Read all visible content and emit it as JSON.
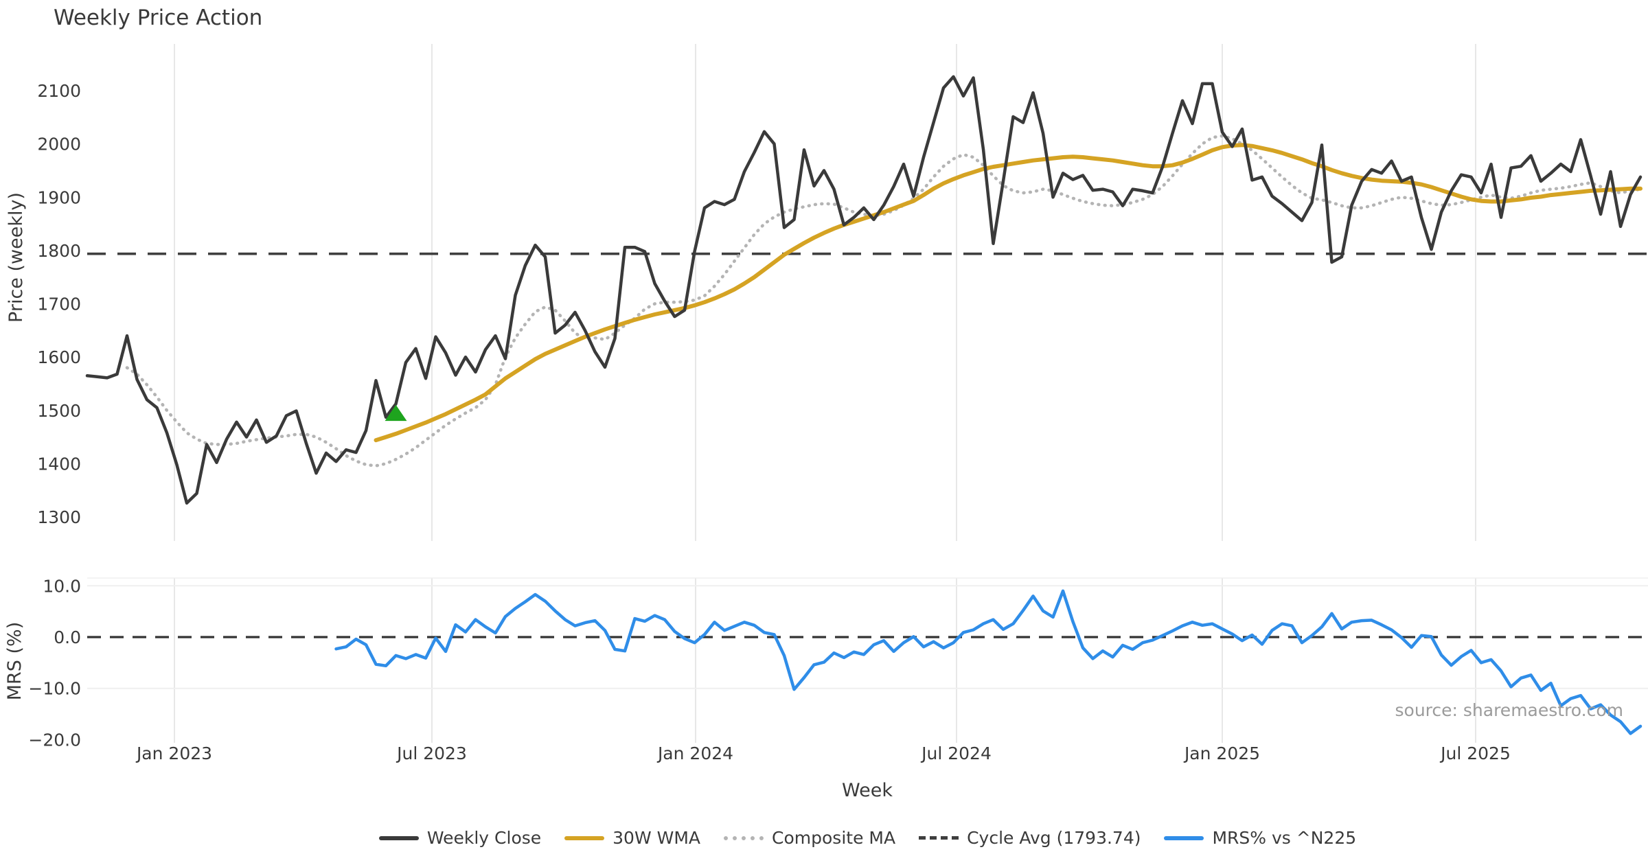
{
  "title": "Weekly Price Action",
  "source_text": "source: sharemaestro.com",
  "colors": {
    "weekly_close": "#3a3a3a",
    "wma30": "#d5a323",
    "composite": "#b4b4b4",
    "cycle_avg": "#3f3f3f",
    "mrs": "#2f8de8",
    "marker_green": "#1ea41e",
    "grid": "#e7e7e7",
    "grid_faint": "#efefef",
    "text": "#3a3a3a",
    "source": "#9b9b9b"
  },
  "legend": {
    "items": [
      {
        "label": "Weekly Close",
        "style": "solid",
        "color": "#3a3a3a"
      },
      {
        "label": "30W WMA",
        "style": "solid",
        "color": "#d5a323"
      },
      {
        "label": "Composite MA",
        "style": "dotted",
        "color": "#b4b4b4"
      },
      {
        "label": "Cycle Avg (1793.74)",
        "style": "dashed",
        "color": "#3f3f3f"
      },
      {
        "label": "MRS% vs ^N225",
        "style": "solid",
        "color": "#2f8de8"
      }
    ]
  },
  "chart_data": [
    {
      "type": "line",
      "panel": "price",
      "title": "Weekly Price Action",
      "ylabel": "Price (weekly)",
      "ylim": [
        1300,
        2100
      ],
      "yticks": [
        2100,
        2000,
        1900,
        1800,
        1700,
        1600,
        1500,
        1400,
        1300
      ],
      "x_unit": "weeks",
      "x_gridlines": [
        {
          "label": "Jan 2023",
          "week": 8.76
        },
        {
          "label": "Jul 2023",
          "week": 34.62
        },
        {
          "label": "Jan 2024",
          "week": 61.1
        },
        {
          "label": "Jul 2024",
          "week": 87.31
        },
        {
          "label": "Jan 2025",
          "week": 114.0
        },
        {
          "label": "Jul 2025",
          "week": 139.45
        }
      ],
      "cycle_avg": 1793.74,
      "marker": {
        "shape": "triangle-up",
        "week": 31,
        "value": 1495,
        "color": "#1ea41e"
      },
      "series": [
        {
          "name": "Weekly Close",
          "color": "#3a3a3a",
          "style": "solid",
          "start_week": 0,
          "values": [
            1565,
            1563,
            1561,
            1568,
            1640,
            1558,
            1520,
            1505,
            1458,
            1398,
            1326,
            1344,
            1436,
            1402,
            1446,
            1478,
            1450,
            1482,
            1440,
            1452,
            1490,
            1499,
            1438,
            1382,
            1420,
            1404,
            1426,
            1421,
            1462,
            1556,
            1487,
            1512,
            1590,
            1616,
            1560,
            1638,
            1608,
            1566,
            1600,
            1572,
            1614,
            1640,
            1597,
            1716,
            1772,
            1810,
            1788,
            1645,
            1660,
            1684,
            1650,
            1610,
            1581,
            1635,
            1806,
            1806,
            1798,
            1738,
            1705,
            1676,
            1688,
            1798,
            1880,
            1892,
            1886,
            1896,
            1948,
            1984,
            2023,
            2000,
            1843,
            1858,
            1989,
            1921,
            1950,
            1915,
            1848,
            1862,
            1880,
            1858,
            1885,
            1920,
            1962,
            1902,
            1975,
            2040,
            2105,
            2126,
            2090,
            2124,
            1990,
            1813,
            1930,
            2051,
            2040,
            2096,
            2020,
            1900,
            1945,
            1933,
            1941,
            1913,
            1915,
            1910,
            1884,
            1915,
            1912,
            1908,
            1957,
            2020,
            2081,
            2038,
            2113,
            2113,
            2022,
            1995,
            2028,
            1932,
            1938,
            1902,
            1888,
            1872,
            1856,
            1890,
            1998,
            1778,
            1788,
            1885,
            1930,
            1952,
            1945,
            1968,
            1930,
            1938,
            1862,
            1802,
            1872,
            1912,
            1942,
            1938,
            1908,
            1962,
            1862,
            1955,
            1958,
            1978,
            1930,
            1945,
            1962,
            1948,
            2008,
            1940,
            1868,
            1948,
            1845,
            1905,
            1938
          ]
        },
        {
          "name": "30W WMA",
          "color": "#d5a323",
          "style": "solid",
          "start_week": 29,
          "values": [
            1444,
            1450,
            1456,
            1463,
            1470,
            1477,
            1485,
            1493,
            1502,
            1511,
            1520,
            1530,
            1545,
            1560,
            1572,
            1584,
            1596,
            1606,
            1614,
            1622,
            1630,
            1638,
            1645,
            1652,
            1658,
            1664,
            1670,
            1675,
            1680,
            1684,
            1688,
            1692,
            1697,
            1703,
            1710,
            1718,
            1727,
            1738,
            1750,
            1764,
            1778,
            1792,
            1803,
            1814,
            1824,
            1833,
            1841,
            1848,
            1854,
            1860,
            1866,
            1872,
            1879,
            1886,
            1893,
            1904,
            1916,
            1926,
            1934,
            1941,
            1947,
            1953,
            1957,
            1960,
            1963,
            1966,
            1969,
            1971,
            1973,
            1975,
            1976,
            1975,
            1973,
            1971,
            1969,
            1966,
            1963,
            1960,
            1958,
            1958,
            1960,
            1965,
            1972,
            1980,
            1988,
            1994,
            1997,
            1998,
            1996,
            1992,
            1988,
            1983,
            1977,
            1971,
            1964,
            1958,
            1951,
            1945,
            1940,
            1936,
            1933,
            1931,
            1930,
            1929,
            1927,
            1924,
            1919,
            1913,
            1907,
            1901,
            1896,
            1893,
            1892,
            1892,
            1894,
            1896,
            1899,
            1901,
            1904,
            1906,
            1908,
            1910,
            1912,
            1913,
            1914,
            1915,
            1916,
            1916
          ]
        },
        {
          "name": "Composite MA",
          "color": "#b4b4b4",
          "style": "dotted",
          "start_week": 4,
          "values": [
            1580,
            1568,
            1548,
            1525,
            1500,
            1478,
            1458,
            1446,
            1438,
            1436,
            1436,
            1438,
            1442,
            1445,
            1448,
            1450,
            1452,
            1455,
            1455,
            1450,
            1440,
            1428,
            1415,
            1405,
            1398,
            1396,
            1400,
            1408,
            1418,
            1430,
            1444,
            1458,
            1472,
            1484,
            1495,
            1505,
            1520,
            1548,
            1600,
            1636,
            1662,
            1685,
            1694,
            1688,
            1668,
            1645,
            1634,
            1636,
            1633,
            1645,
            1660,
            1673,
            1690,
            1700,
            1703,
            1703,
            1704,
            1707,
            1715,
            1733,
            1755,
            1780,
            1805,
            1830,
            1850,
            1863,
            1872,
            1878,
            1882,
            1886,
            1888,
            1887,
            1880,
            1872,
            1868,
            1865,
            1868,
            1875,
            1885,
            1898,
            1915,
            1938,
            1958,
            1972,
            1980,
            1975,
            1960,
            1940,
            1922,
            1912,
            1908,
            1910,
            1915,
            1912,
            1905,
            1898,
            1892,
            1888,
            1885,
            1884,
            1886,
            1890,
            1896,
            1905,
            1920,
            1940,
            1962,
            1982,
            2000,
            2012,
            2015,
            2010,
            2000,
            1988,
            1972,
            1955,
            1938,
            1922,
            1908,
            1898,
            1895,
            1890,
            1884,
            1880,
            1880,
            1884,
            1890,
            1896,
            1900,
            1898,
            1893,
            1888,
            1885,
            1886,
            1890,
            1895,
            1900,
            1904,
            1900,
            1898,
            1902,
            1908,
            1913,
            1915,
            1917,
            1920,
            1924,
            1927,
            1920,
            1912,
            1908,
            1912,
            1915
          ]
        }
      ]
    },
    {
      "type": "line",
      "panel": "mrs",
      "ylabel": "MRS (%)",
      "xlabel": "Week",
      "ylim": [
        -22,
        11.5
      ],
      "yticks": [
        {
          "v": 10,
          "label": "10.0"
        },
        {
          "v": 0,
          "label": "0.0"
        },
        {
          "v": -10,
          "label": "−10.0"
        },
        {
          "v": -20,
          "label": "−20.0"
        }
      ],
      "zero_line": 0.0,
      "grid_values": [
        10,
        -10
      ],
      "series": [
        {
          "name": "MRS% vs ^N225",
          "color": "#2f8de8",
          "style": "solid",
          "start_week": 25,
          "values": [
            -2.3,
            -1.9,
            -0.4,
            -1.5,
            -5.3,
            -5.6,
            -3.6,
            -4.2,
            -3.4,
            -4.1,
            -0.2,
            -2.8,
            2.4,
            1.0,
            3.4,
            2.0,
            0.8,
            4.0,
            5.6,
            6.9,
            8.3,
            7.0,
            5.1,
            3.4,
            2.2,
            2.8,
            3.2,
            1.3,
            -2.4,
            -2.7,
            3.6,
            3.1,
            4.2,
            3.4,
            1.1,
            -0.3,
            -1.1,
            0.5,
            2.9,
            1.3,
            2.1,
            2.9,
            2.3,
            0.9,
            0.5,
            -3.6,
            -10.2,
            -7.9,
            -5.4,
            -4.9,
            -3.1,
            -4.0,
            -2.9,
            -3.4,
            -1.5,
            -0.7,
            -2.8,
            -1.1,
            0.1,
            -1.9,
            -0.9,
            -2.1,
            -1.1,
            0.9,
            1.4,
            2.6,
            3.4,
            1.5,
            2.6,
            5.2,
            8.0,
            5.1,
            3.9,
            9.0,
            3.0,
            -2.1,
            -4.2,
            -2.7,
            -3.9,
            -1.6,
            -2.4,
            -1.1,
            -0.6,
            0.3,
            1.2,
            2.2,
            2.9,
            2.3,
            2.6,
            1.6,
            0.6,
            -0.7,
            0.4,
            -1.4,
            1.3,
            2.6,
            2.2,
            -1.1,
            0.3,
            2.0,
            4.6,
            1.6,
            2.9,
            3.2,
            3.3,
            2.4,
            1.4,
            -0.1,
            -2.0,
            0.3,
            0.1,
            -3.5,
            -5.5,
            -3.8,
            -2.6,
            -5.0,
            -4.4,
            -6.6,
            -9.7,
            -8.0,
            -7.4,
            -10.4,
            -9.0,
            -13.4,
            -12.0,
            -11.4,
            -14.0,
            -13.2,
            -15.2,
            -16.5,
            -18.8,
            -17.4
          ]
        }
      ]
    }
  ]
}
